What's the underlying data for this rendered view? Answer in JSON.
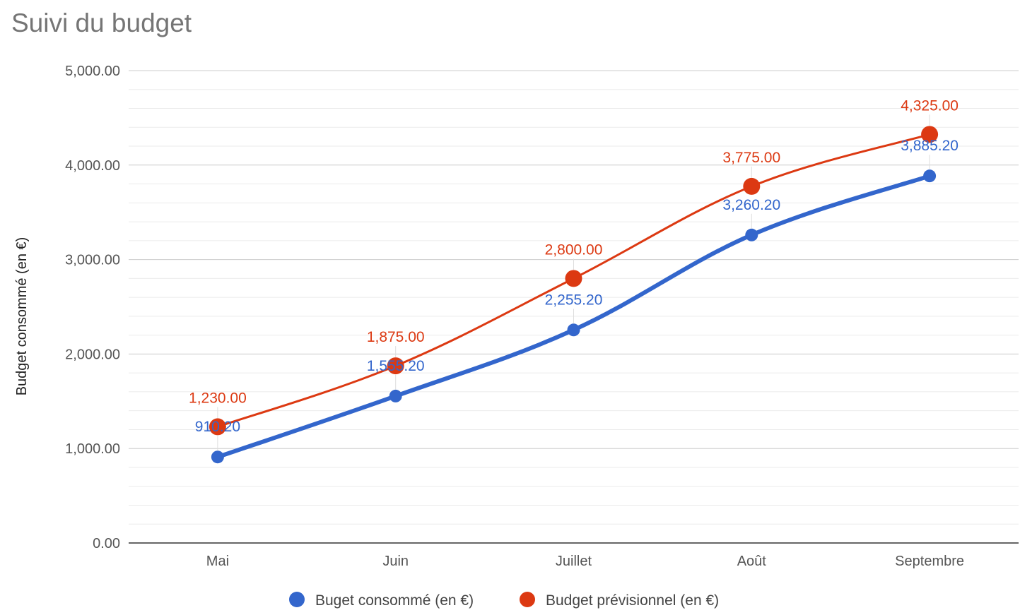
{
  "chart_data": {
    "type": "line",
    "title": "Suivi du budget",
    "xlabel": "",
    "ylabel": "Budget consommé (en €)",
    "categories": [
      "Mai",
      "Juin",
      "Juillet",
      "Août",
      "Septembre"
    ],
    "ylim": [
      0,
      5000
    ],
    "y_ticks": [
      0,
      1000,
      2000,
      3000,
      4000,
      5000
    ],
    "y_tick_labels": [
      "0.00",
      "1,000.00",
      "2,000.00",
      "3,000.00",
      "4,000.00",
      "5,000.00"
    ],
    "grid": true,
    "legend_position": "bottom",
    "series": [
      {
        "name": "Buget consommé (en €)",
        "color": "#3366cc",
        "values": [
          910.2,
          1555.2,
          2255.2,
          3260.2,
          3885.2
        ],
        "value_labels": [
          "910.20",
          "1,555.20",
          "2,255.20",
          "3,260.20",
          "3,885.20"
        ]
      },
      {
        "name": "Budget prévisionnel (en €)",
        "color": "#dc3912",
        "values": [
          1230,
          1875,
          2800,
          3775,
          4325
        ],
        "value_labels": [
          "1,230.00",
          "1,875.00",
          "2,800.00",
          "3,775.00",
          "4,325.00"
        ]
      }
    ]
  }
}
